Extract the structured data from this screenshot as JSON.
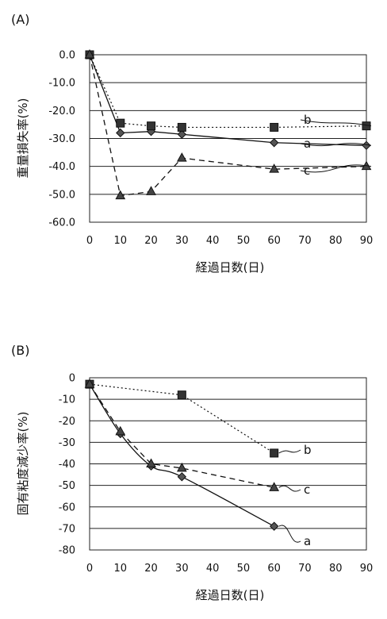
{
  "chart_data": [
    {
      "type": "line",
      "panel_label": "(A)",
      "xlabel": "経過日数(日)",
      "ylabel": "重量損失率(%)",
      "xlim": [
        0,
        90
      ],
      "ylim": [
        -60,
        0
      ],
      "x_ticks": [
        "0",
        "10",
        "20",
        "30",
        "40",
        "50",
        "60",
        "70",
        "80",
        "90"
      ],
      "y_ticks": [
        "0.0",
        "-10.0",
        "-20.0",
        "-30.0",
        "-40.0",
        "-50.0",
        "-60.0"
      ],
      "grid": true,
      "series": [
        {
          "name": "a",
          "marker": "diamond",
          "line": "solid",
          "x": [
            0,
            10,
            20,
            30,
            60,
            90
          ],
          "y": [
            0,
            -28,
            -27.5,
            -28.5,
            -31.5,
            -32.5
          ]
        },
        {
          "name": "b",
          "marker": "square",
          "line": "dotted",
          "x": [
            0,
            10,
            20,
            30,
            60,
            90
          ],
          "y": [
            0,
            -24.5,
            -25.5,
            -26,
            -26,
            -25.5
          ]
        },
        {
          "name": "c",
          "marker": "triangle",
          "line": "dashed",
          "x": [
            0,
            10,
            20,
            30,
            60,
            90
          ],
          "y": [
            0,
            -50.5,
            -49,
            -37,
            -41,
            -40
          ]
        }
      ]
    },
    {
      "type": "line",
      "panel_label": "(B)",
      "xlabel": "経過日数(日)",
      "ylabel": "固有粘度減少率(%)",
      "xlim": [
        0,
        90
      ],
      "ylim": [
        -80,
        0
      ],
      "x_ticks": [
        "0",
        "10",
        "20",
        "30",
        "40",
        "50",
        "60",
        "70",
        "80",
        "90"
      ],
      "y_ticks": [
        "0",
        "-10",
        "-20",
        "-30",
        "-40",
        "-50",
        "-60",
        "-70",
        "-80"
      ],
      "grid": true,
      "series": [
        {
          "name": "a",
          "marker": "diamond",
          "line": "solid",
          "curve": true,
          "x": [
            0,
            10,
            20,
            30,
            60
          ],
          "y": [
            -3,
            -26,
            -41,
            -46,
            -69
          ]
        },
        {
          "name": "b",
          "marker": "square",
          "line": "dotted",
          "x": [
            0,
            30,
            60
          ],
          "y": [
            -3,
            -8,
            -35
          ]
        },
        {
          "name": "c",
          "marker": "triangle",
          "line": "dashed",
          "x": [
            0,
            10,
            20,
            30,
            60
          ],
          "y": [
            -3,
            -25,
            -40,
            -42,
            -51
          ]
        }
      ]
    }
  ]
}
